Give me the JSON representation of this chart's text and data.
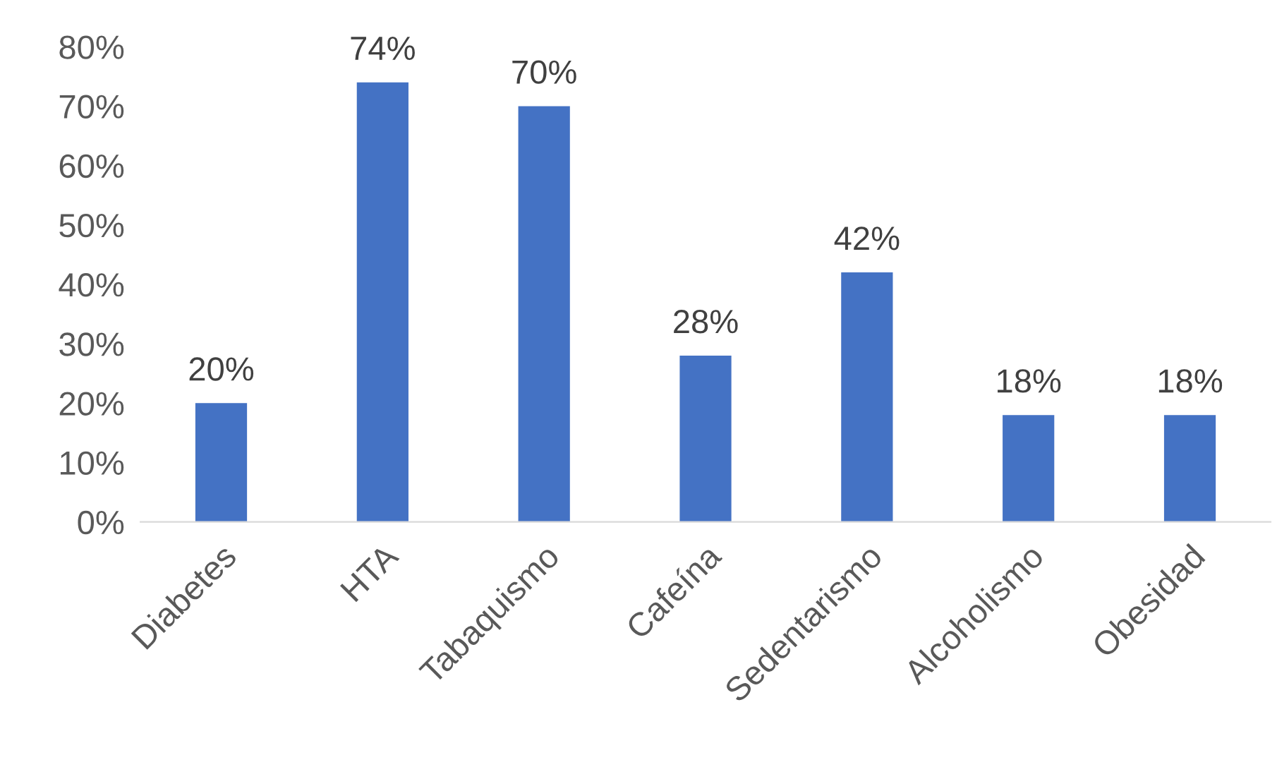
{
  "chart_data": {
    "type": "bar",
    "categories": [
      "Diabetes",
      "HTA",
      "Tabaquismo",
      "Cafeína",
      "Sedentarismo",
      "Alcoholismo",
      "Obesidad"
    ],
    "values": [
      20,
      74,
      70,
      28,
      42,
      18,
      18
    ],
    "color": "#4472c4",
    "value_labels": [
      "20%",
      "74%",
      "70%",
      "28%",
      "42%",
      "18%",
      "18%"
    ],
    "ylim": [
      0,
      80
    ],
    "yticks": [
      {
        "value": 0,
        "label": "0%"
      },
      {
        "value": 10,
        "label": "10%"
      },
      {
        "value": 20,
        "label": "20%"
      },
      {
        "value": 30,
        "label": "30%"
      },
      {
        "value": 40,
        "label": "40%"
      },
      {
        "value": 50,
        "label": "50%"
      },
      {
        "value": 60,
        "label": "60%"
      },
      {
        "value": 70,
        "label": "70%"
      },
      {
        "value": 80,
        "label": "80%"
      }
    ],
    "grid": false,
    "legend": false
  }
}
